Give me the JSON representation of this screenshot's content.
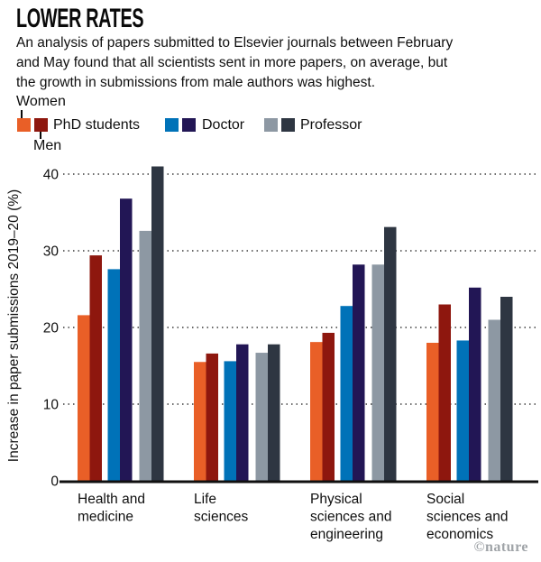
{
  "header": {
    "title": "LOWER RATES",
    "subtitle": "An analysis of papers submitted to Elsevier journals between February\nand May found that all scientists sent in more papers, on average, but\nthe growth in submissions from male authors was highest."
  },
  "legend": {
    "women_label": "Women",
    "men_label": "Men",
    "groups": [
      {
        "label": "PhD students",
        "women_color": "#E95F27",
        "men_color": "#8E170E"
      },
      {
        "label": "Doctor",
        "women_color": "#0072B8",
        "men_color": "#221655"
      },
      {
        "label": "Professor",
        "women_color": "#8D98A3",
        "men_color": "#2E3642"
      }
    ]
  },
  "chart_data": {
    "type": "bar",
    "title": "LOWER RATES",
    "xlabel": "",
    "ylabel": "Increase in paper submissions 2019–20 (%)",
    "ylim": [
      0,
      40
    ],
    "yticks": [
      0,
      10,
      20,
      30,
      40
    ],
    "grid": "horizontal-dotted",
    "legend_position": "top",
    "categories": [
      "Health and\nmedicine",
      "Life\nsciences",
      "Physical\nsciences and\nengineering",
      "Social\nsciences and\neconomics"
    ],
    "series": [
      {
        "name": "Women PhD students",
        "color": "#E95F27",
        "values": [
          21.6,
          15.5,
          18.1,
          18.0
        ]
      },
      {
        "name": "Men PhD students",
        "color": "#8E170E",
        "values": [
          29.4,
          16.6,
          19.3,
          23.0
        ]
      },
      {
        "name": "Women Doctor",
        "color": "#0072B8",
        "values": [
          27.6,
          15.6,
          22.8,
          18.3
        ]
      },
      {
        "name": "Men Doctor",
        "color": "#221655",
        "values": [
          36.8,
          17.8,
          28.2,
          25.2
        ]
      },
      {
        "name": "Women Professor",
        "color": "#8D98A3",
        "values": [
          32.6,
          16.7,
          28.2,
          21.0
        ]
      },
      {
        "name": "Men Professor",
        "color": "#2E3642",
        "values": [
          41.0,
          17.8,
          33.1,
          24.0
        ]
      }
    ]
  },
  "footer": {
    "credit": "©nature"
  }
}
